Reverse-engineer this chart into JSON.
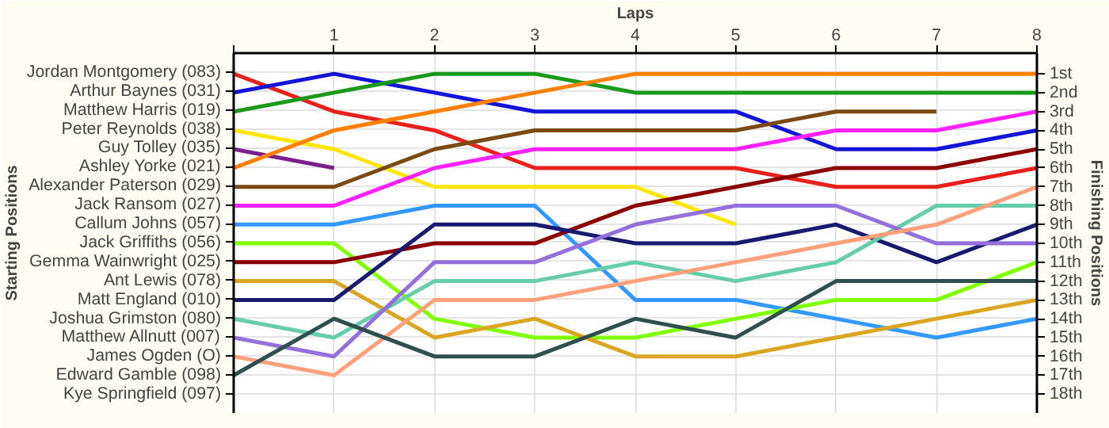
{
  "chart_data": {
    "type": "line",
    "xlabel": "Laps",
    "annotations": [
      "Starting Positions"
    ],
    "y2label": "Finishing Positions",
    "x": [
      0,
      1,
      2,
      3,
      4,
      5,
      6,
      7,
      8
    ],
    "xlim": [
      0,
      8
    ],
    "xticks": [
      {
        "value": 0,
        "label": null
      },
      1,
      2,
      3,
      4,
      5,
      6,
      7,
      8
    ],
    "y_categories": [
      "Jordan Montgomery (083)",
      "Arthur Baynes (031)",
      "Matthew Harris (019)",
      "Peter Reynolds (038)",
      "Guy Tolley (035)",
      "Ashley Yorke (021)",
      "Alexander Paterson (029)",
      "Jack Ransom (027)",
      "Callum Johns (057)",
      "Jack Griffiths (056)",
      "Gemma Wainwright (025)",
      "Ant Lewis (078)",
      "Matt England (010)",
      "Joshua Grimston (080)",
      "Matthew Allnutt (007)",
      "James Ogden (O)",
      "Edward Gamble (098)",
      "Kye Springfield (097)"
    ],
    "y2lim": [
      19,
      -0.1
    ],
    "y2ticks": [
      {
        "value": 1,
        "label": "1st"
      },
      {
        "value": 2,
        "label": "2nd"
      },
      {
        "value": 3,
        "label": "3rd"
      },
      {
        "value": 4,
        "label": "4th"
      },
      {
        "value": 5,
        "label": "5th"
      },
      {
        "value": 6,
        "label": "6th"
      },
      {
        "value": 7,
        "label": "7th"
      },
      {
        "value": 8,
        "label": "8th"
      },
      {
        "value": 9,
        "label": "9th"
      },
      {
        "value": 10,
        "label": "10th"
      },
      {
        "value": 11,
        "label": "11th"
      },
      {
        "value": 12,
        "label": "12th"
      },
      {
        "value": 13,
        "label": "13th"
      },
      {
        "value": 14,
        "label": "14th"
      },
      {
        "value": 15,
        "label": "15th"
      },
      {
        "value": 16,
        "label": "16th"
      },
      {
        "value": 17,
        "label": "17th"
      },
      {
        "value": 18,
        "label": "18th"
      }
    ],
    "grid": true,
    "marker": "none",
    "line_style": "solid",
    "series": [
      {
        "axis": "y2",
        "color": "#e8201c",
        "values": [
          1,
          3,
          4,
          6,
          6,
          6,
          7,
          7,
          6
        ]
      },
      {
        "axis": "y2",
        "color": "#1414d8",
        "values": [
          2,
          1,
          2,
          3,
          3,
          3,
          5,
          5,
          4
        ]
      },
      {
        "axis": "y2",
        "color": "#1a9a1a",
        "values": [
          3,
          2,
          1,
          1,
          2,
          2,
          2,
          2,
          2
        ]
      },
      {
        "axis": "y2",
        "color": "#ffe600",
        "values": [
          4,
          5,
          7,
          7,
          7,
          9,
          null,
          null,
          null
        ]
      },
      {
        "axis": "y2",
        "color": "#7b1f8f",
        "values": [
          5,
          6,
          null,
          null,
          null,
          null,
          null,
          null,
          null
        ]
      },
      {
        "axis": "y2",
        "color": "#ff8000",
        "values": [
          6,
          4,
          3,
          2,
          1,
          1,
          1,
          1,
          1
        ]
      },
      {
        "axis": "y2",
        "color": "#7b4a12",
        "values": [
          7,
          7,
          5,
          4,
          4,
          4,
          3,
          3,
          null
        ]
      },
      {
        "axis": "y2",
        "color": "#ff20ff",
        "values": [
          8,
          8,
          6,
          5,
          5,
          5,
          4,
          4,
          3
        ]
      },
      {
        "axis": "y2",
        "color": "#3399ff",
        "values": [
          9,
          9,
          8,
          8,
          13,
          13,
          14,
          15,
          14
        ]
      },
      {
        "axis": "y2",
        "color": "#80ff00",
        "values": [
          10,
          10,
          14,
          15,
          15,
          14,
          13,
          13,
          11
        ]
      },
      {
        "axis": "y2",
        "color": "#8b0000",
        "values": [
          11,
          11,
          10,
          10,
          8,
          7,
          6,
          6,
          5
        ]
      },
      {
        "axis": "y2",
        "color": "#daa520",
        "values": [
          12,
          12,
          15,
          14,
          16,
          16,
          15,
          14,
          13
        ]
      },
      {
        "axis": "y2",
        "color": "#191970",
        "values": [
          13,
          13,
          9,
          9,
          10,
          10,
          9,
          11,
          9
        ]
      },
      {
        "axis": "y2",
        "color": "#66cdaa",
        "values": [
          14,
          15,
          12,
          12,
          11,
          12,
          11,
          8,
          8
        ]
      },
      {
        "axis": "y2",
        "color": "#9370db",
        "values": [
          15,
          16,
          11,
          11,
          9,
          8,
          8,
          10,
          10
        ]
      },
      {
        "axis": "y2",
        "color": "#ffa07a",
        "values": [
          16,
          17,
          13,
          13,
          12,
          11,
          10,
          9,
          7
        ]
      },
      {
        "axis": "y2",
        "color": "#2f4f4f",
        "values": [
          17,
          14,
          16,
          16,
          14,
          15,
          12,
          12,
          12
        ]
      }
    ]
  }
}
